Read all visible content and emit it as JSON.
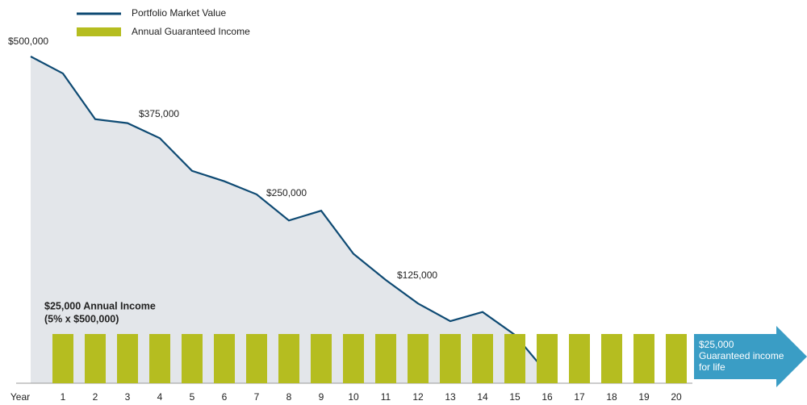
{
  "chart_data": {
    "type": "line",
    "legend": "top-left",
    "x_label": "Year",
    "x": [
      0,
      1,
      2,
      3,
      4,
      5,
      6,
      7,
      8,
      9,
      10,
      11,
      12,
      13,
      14,
      15,
      16
    ],
    "xlim": [
      -0.45,
      24.05
    ],
    "xticks": [
      1,
      2,
      3,
      4,
      5,
      6,
      7,
      8,
      9,
      10,
      11,
      12,
      13,
      14,
      15,
      16,
      17,
      18,
      19,
      20
    ],
    "ylim": [
      0,
      500000
    ],
    "y2lim": [
      0,
      166000
    ],
    "grid": false,
    "area_color": "#e3e6ea",
    "series": [
      {
        "name": "Portfolio Market Value",
        "color": "#0e4a73",
        "values": [
          500000,
          474000,
          404000,
          398000,
          375000,
          325000,
          309000,
          289000,
          249000,
          264000,
          198000,
          158000,
          122000,
          95000,
          109000,
          74000,
          15000
        ]
      },
      {
        "name": "Annual Guaranteed Income",
        "color": "#b5bd20",
        "type": "bar",
        "axis": "y2",
        "x": [
          1,
          2,
          3,
          4,
          5,
          6,
          7,
          8,
          9,
          10,
          11,
          12,
          13,
          14,
          15,
          16,
          17,
          18,
          19,
          20
        ],
        "values": [
          25000,
          25000,
          25000,
          25000,
          25000,
          25000,
          25000,
          25000,
          25000,
          25000,
          25000,
          25000,
          25000,
          25000,
          25000,
          25000,
          25000,
          25000,
          25000,
          25000
        ]
      }
    ],
    "annotations": [
      "$500,000",
      "$375,000",
      "$250,000",
      "$125,000",
      "$25,000 Annual Income",
      "(5% x $500,000)"
    ],
    "arrow_text": [
      "$25,000",
      "Guaranteed income",
      "for life"
    ],
    "arrow_color": "#3a9dc5"
  }
}
